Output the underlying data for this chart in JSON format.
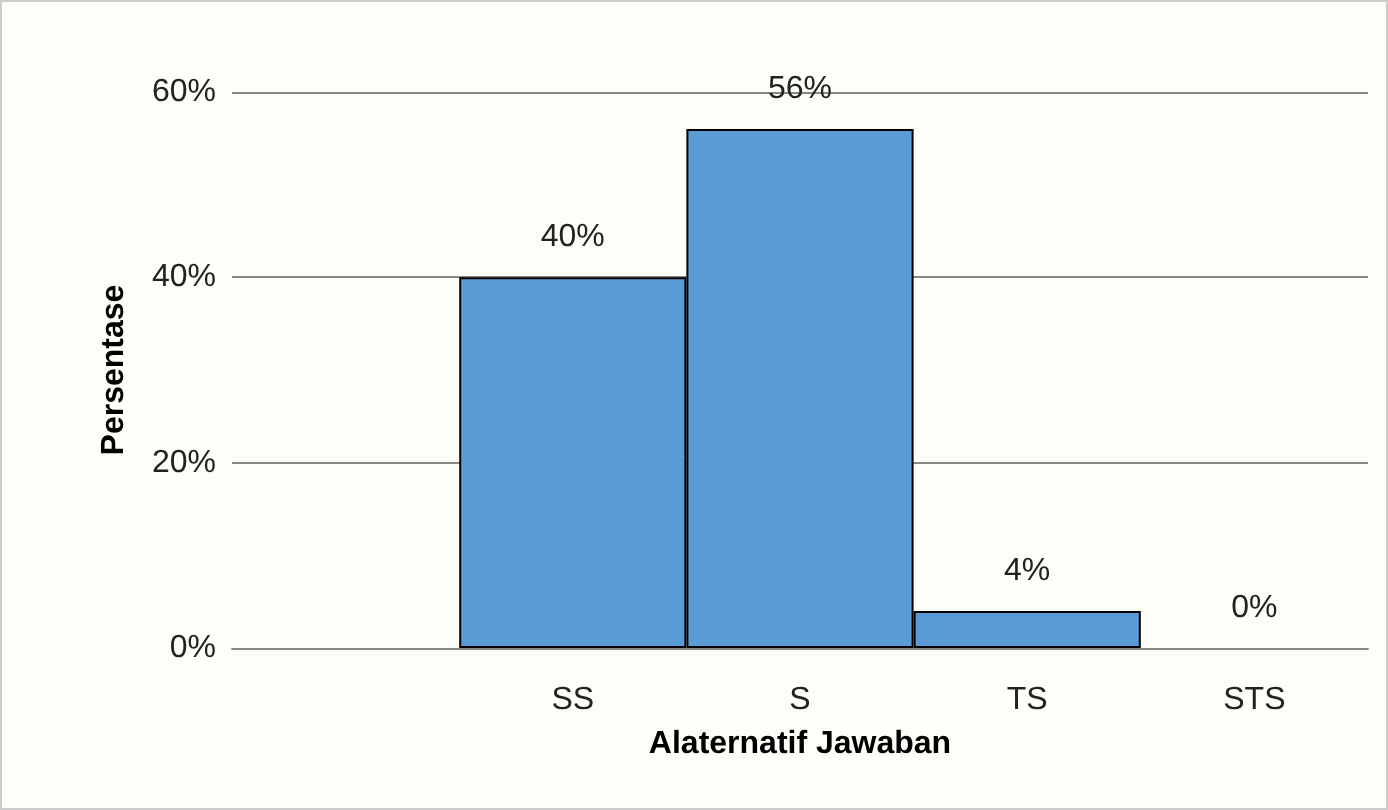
{
  "chart_data": {
    "type": "bar",
    "xlabel": "Alaternatif Jawaban",
    "ylabel": "Persentase",
    "categories": [
      null,
      "SS",
      "S",
      "TS",
      "STS"
    ],
    "values": [
      null,
      40,
      56,
      4,
      0
    ],
    "value_labels": [
      null,
      "40%",
      "56%",
      "4%",
      "0%"
    ],
    "color": "#5b9bd5",
    "ylim": [
      0,
      60
    ],
    "yticks": [
      {
        "value": 0,
        "label": "0%"
      },
      {
        "value": 20,
        "label": "20%"
      },
      {
        "value": 40,
        "label": "40%"
      },
      {
        "value": 60,
        "label": "60%"
      }
    ],
    "grid": "y"
  }
}
